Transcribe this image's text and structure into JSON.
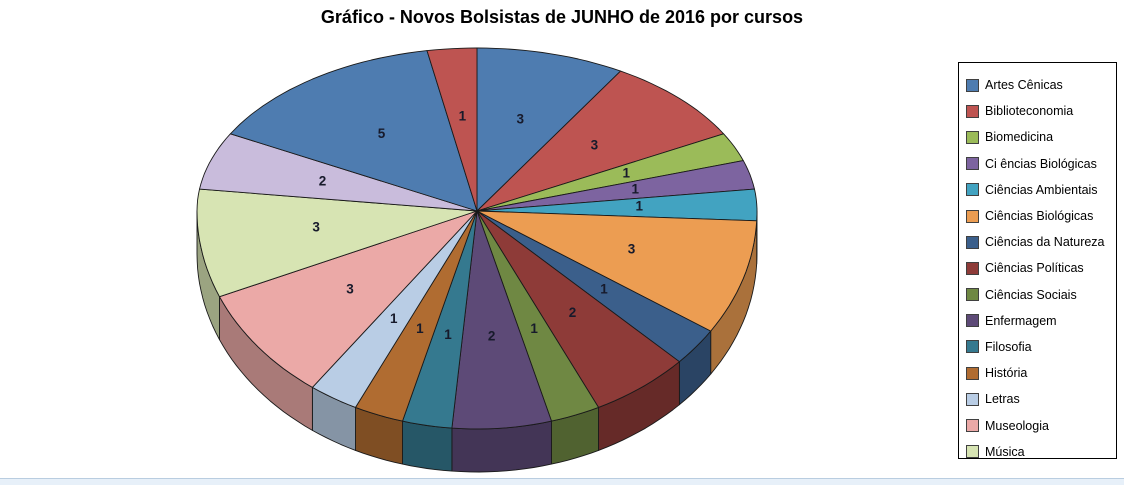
{
  "chart_data": {
    "type": "pie",
    "style": "3d",
    "title": "Gráfico - Novos Bolsistas de JUNHO de 2016 por cursos",
    "direction": "clockwise",
    "start_angle_deg": 0,
    "total": 35,
    "show_value_labels": true,
    "value_label_color": "#171a2b",
    "legend_position": "right",
    "slices": [
      {
        "label": "Artes Cênicas",
        "value": 3,
        "color": "#4e7cb0"
      },
      {
        "label": "Biblioteconomia",
        "value": 3,
        "color": "#be5451"
      },
      {
        "label": "Biomedicina",
        "value": 1,
        "color": "#9bbb59"
      },
      {
        "label": "Ci ências Biológicas",
        "value": 1,
        "color": "#7d64a0"
      },
      {
        "label": "Ciências Ambientais",
        "value": 1,
        "color": "#42a3c1"
      },
      {
        "label": "Ciências Biológicas",
        "value": 3,
        "color": "#ec9d52"
      },
      {
        "label": "Ciências da Natureza",
        "value": 1,
        "color": "#3b5f8b"
      },
      {
        "label": "Ciências Políticas",
        "value": 2,
        "color": "#8e3b38"
      },
      {
        "label": "Ciências Sociais",
        "value": 1,
        "color": "#6f8843"
      },
      {
        "label": "Enfermagem",
        "value": 2,
        "color": "#5d4a77"
      },
      {
        "label": "Filosofia",
        "value": 1,
        "color": "#35798f"
      },
      {
        "label": "História",
        "value": 1,
        "color": "#b06c31"
      },
      {
        "label": "Letras",
        "value": 1,
        "color": "#b9cde5"
      },
      {
        "label": "Museologia",
        "value": 3,
        "color": "#eba9a7"
      },
      {
        "label": "Música",
        "value": 3,
        "color": "#d7e4b3"
      },
      {
        "label": "",
        "value": 2,
        "color": "#c9bcdc"
      },
      {
        "label": "",
        "value": 5,
        "color": "#4e7cb0"
      },
      {
        "label": "",
        "value": 1,
        "color": "#be5451"
      }
    ],
    "legend_items": [
      {
        "label": "Artes Cênicas",
        "color": "#4e7cb0"
      },
      {
        "label": "Biblioteconomia",
        "color": "#be5451"
      },
      {
        "label": "Biomedicina",
        "color": "#9bbb59"
      },
      {
        "label": "Ci ências Biológicas",
        "color": "#7d64a0"
      },
      {
        "label": "Ciências Ambientais",
        "color": "#42a3c1"
      },
      {
        "label": "Ciências Biológicas",
        "color": "#ec9d52"
      },
      {
        "label": "Ciências da Natureza",
        "color": "#3b5f8b"
      },
      {
        "label": "Ciências Políticas",
        "color": "#8e3b38"
      },
      {
        "label": "Ciências Sociais",
        "color": "#6f8843"
      },
      {
        "label": "Enfermagem",
        "color": "#5d4a77"
      },
      {
        "label": "Filosofia",
        "color": "#35798f"
      },
      {
        "label": "História",
        "color": "#b06c31"
      },
      {
        "label": "Letras",
        "color": "#b9cde5"
      },
      {
        "label": "Museologia",
        "color": "#eba9a7"
      },
      {
        "label": "Música",
        "color": "#d7e4b3"
      }
    ]
  },
  "window": {
    "bottom_strip_fill": "#e7f0f9",
    "bottom_strip_line": "#b9cde0"
  }
}
